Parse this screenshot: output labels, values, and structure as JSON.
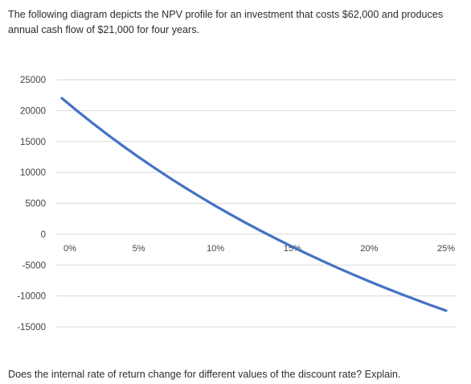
{
  "intro_text": "The following diagram depicts the NPV profile for an investment that costs $62,000 and produces annual cash flow of $21,000 for four years.",
  "question_text": "Does the internal rate of return change for different values of the discount rate? Explain.",
  "colors": {
    "line": "#4472c4",
    "grid": "#d9d9d9",
    "text": "#2d2d2d"
  },
  "chart_data": {
    "type": "line",
    "title": "",
    "xlabel": "",
    "ylabel": "",
    "grid": true,
    "xlim": [
      0,
      0.25
    ],
    "ylim": [
      -15000,
      25000
    ],
    "y_ticks": [
      25000,
      20000,
      15000,
      10000,
      5000,
      0,
      -5000,
      -10000,
      -15000
    ],
    "x_ticks": [
      "0%",
      "5%",
      "10%",
      "15%",
      "20%",
      "25%"
    ],
    "x_tick_values": [
      0,
      0.05,
      0.1,
      0.15,
      0.2,
      0.25
    ],
    "series": [
      {
        "x": [
          0,
          0.01,
          0.02,
          0.03,
          0.04,
          0.05,
          0.06,
          0.07,
          0.08,
          0.09,
          0.1,
          0.11,
          0.12,
          0.13,
          0.14,
          0.15,
          0.16,
          0.17,
          0.18,
          0.19,
          0.2,
          0.21,
          0.22,
          0.23,
          0.24,
          0.25
        ],
        "values": [
          22000,
          19940,
          17961,
          16057,
          14224,
          12464,
          10769,
          9132,
          7555,
          6034,
          4566,
          3150,
          1785,
          464,
          -809,
          -2045,
          -3239,
          -4393,
          -5509,
          -6586,
          -7637,
          -8647,
          -9624,
          -10575,
          -11495,
          -12382
        ]
      }
    ]
  }
}
